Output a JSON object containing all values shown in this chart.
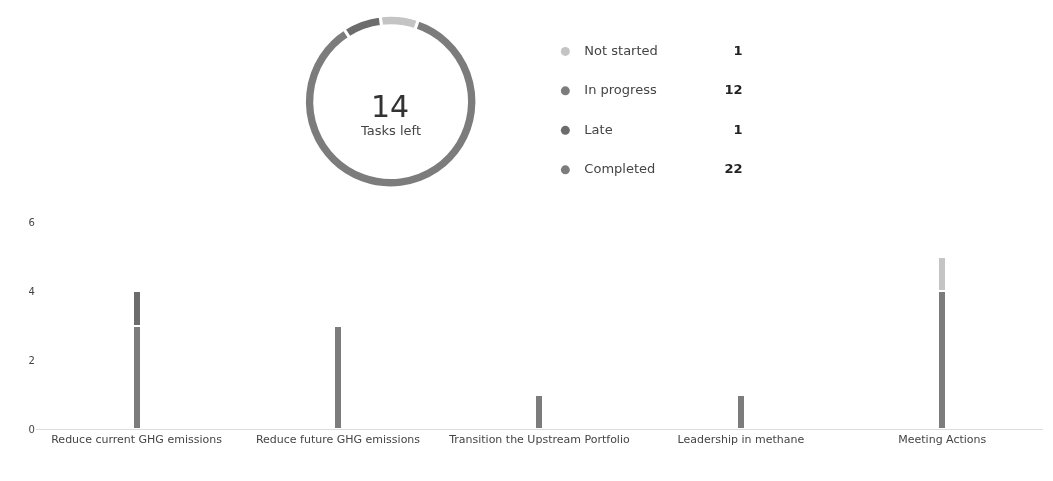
{
  "chart_data": [
    {
      "type": "donut",
      "categories": [
        "Not started",
        "In progress",
        "Late"
      ],
      "values": [
        1,
        12,
        1
      ],
      "colors": [
        "#c4c4c4",
        "#7c7c7c",
        "#6c6c6c"
      ],
      "value_labels": [
        "1",
        "12",
        "1"
      ],
      "legend": "right",
      "annotations": [
        "14",
        "Tasks left",
        "Completed",
        "22"
      ]
    },
    {
      "type": "bar",
      "stacked": true,
      "categories": [
        "Reduce current GHG emissions",
        "Reduce future GHG emissions",
        "Transition the Upstream Portfolio",
        "Leadership in methane",
        "Meeting Actions"
      ],
      "series": [
        {
          "color": "#7c7c7c",
          "values": [
            3,
            3,
            1,
            1,
            4
          ]
        },
        {
          "color": "#6c6c6c",
          "values": [
            1,
            null,
            null,
            null,
            null
          ]
        },
        {
          "color": "#c4c4c4",
          "values": [
            null,
            null,
            null,
            null,
            1
          ]
        }
      ],
      "ylim": [
        0,
        6
      ],
      "yticks": [
        0,
        2,
        4,
        6
      ]
    }
  ]
}
